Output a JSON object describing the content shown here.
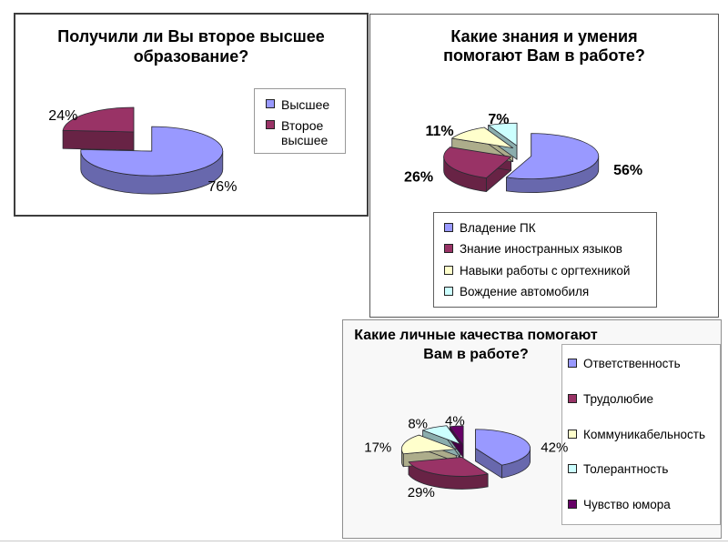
{
  "slide": {
    "background": "#ffffff",
    "bottom_divider_color": "#c9c9c9"
  },
  "panels": [
    {
      "title_text": "Получили ли Вы второе высшее\nобразование?"
    },
    {
      "title_text": "Какие знания и умения\nпомогают Вам в работе?"
    },
    {
      "title_text": "Какие личные качества помогают\nВам в работе?"
    }
  ],
  "chart_data": [
    {
      "type": "pie",
      "style": "3d-exploded",
      "title": "Получили ли Вы второе высшее образование?",
      "labels": [
        "Высшее",
        "Второе высшее"
      ],
      "values": [
        76,
        24
      ],
      "value_labels": [
        "76%",
        "24%"
      ],
      "colors": [
        "#9999FF",
        "#993366"
      ],
      "legend_position": "right",
      "start_angle_deg": 90,
      "direction": "clockwise"
    },
    {
      "type": "pie",
      "style": "3d-exploded",
      "title": "Какие знания и умения помогают Вам в работе?",
      "labels": [
        "Владение ПК",
        "Знание иностранных языков",
        "Навыки работы с оргтехникой",
        "Вождение автомобиля"
      ],
      "values": [
        56,
        26,
        11,
        7
      ],
      "value_labels": [
        "56%",
        "26%",
        "11%",
        "7%"
      ],
      "colors": [
        "#9999FF",
        "#993366",
        "#FFFFCC",
        "#CCFFFF"
      ],
      "legend_position": "bottom",
      "start_angle_deg": 90,
      "direction": "clockwise"
    },
    {
      "type": "pie",
      "style": "3d-exploded",
      "title": "Какие личные качества помогают Вам в работе?",
      "labels": [
        "Ответственность",
        "Трудолюбие",
        "Коммуникабельность",
        "Толерантность",
        "Чувство юмора"
      ],
      "values": [
        42,
        29,
        17,
        8,
        4
      ],
      "value_labels": [
        "42%",
        "29%",
        "17%",
        "8%",
        "4%"
      ],
      "colors": [
        "#9999FF",
        "#993366",
        "#FFFFCC",
        "#CCFFFF",
        "#660066"
      ],
      "legend_position": "right",
      "start_angle_deg": 90,
      "direction": "clockwise"
    }
  ]
}
